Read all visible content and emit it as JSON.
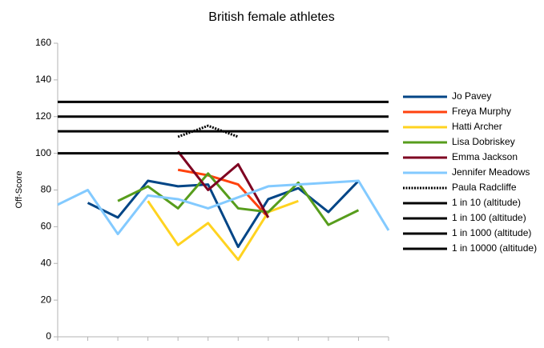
{
  "chart_data": {
    "type": "line",
    "title": "British female athletes",
    "y_label": "Off-Score",
    "categories": [
      null,
      null,
      null,
      null,
      null,
      null,
      null,
      null,
      null,
      null,
      null,
      null
    ],
    "ylim": [
      0,
      160
    ],
    "yticks": [
      0,
      20,
      40,
      60,
      80,
      100,
      120,
      140,
      160
    ],
    "grid": false,
    "legend": "right",
    "series": [
      {
        "name": "Jo Pavey",
        "color": "#004586",
        "values": [
          null,
          73,
          65,
          85,
          82,
          83,
          49,
          75,
          81,
          68,
          85,
          null
        ]
      },
      {
        "name": "Freya Murphy",
        "color": "#ff420e",
        "values": [
          null,
          null,
          null,
          null,
          91,
          88,
          83,
          65,
          null,
          null,
          null,
          null
        ]
      },
      {
        "name": "Hatti Archer",
        "color": "#ffd320",
        "values": [
          null,
          null,
          null,
          74,
          50,
          62,
          42,
          68,
          74,
          null,
          null,
          null
        ]
      },
      {
        "name": "Lisa Dobriskey",
        "color": "#579d1c",
        "values": [
          null,
          null,
          74,
          82,
          70,
          89,
          70,
          68,
          84,
          61,
          69,
          null
        ]
      },
      {
        "name": "Emma Jackson",
        "color": "#7e0021",
        "values": [
          null,
          null,
          null,
          null,
          101,
          80,
          94,
          65,
          null,
          null,
          null,
          null
        ]
      },
      {
        "name": "Jennifer Meadows",
        "color": "#83caff",
        "values": [
          72,
          80,
          56,
          77,
          75,
          70,
          76,
          82,
          83,
          84,
          85,
          58
        ]
      },
      {
        "name": "Paula Radcliffe",
        "color": "#000000",
        "dashed": true,
        "values": [
          null,
          null,
          null,
          null,
          109,
          115,
          109,
          null,
          null,
          null,
          null,
          null
        ]
      },
      {
        "name": "1 in 10 (altitude)",
        "color": "#000000",
        "values": [
          100,
          100,
          100,
          100,
          100,
          100,
          100,
          100,
          100,
          100,
          100,
          100
        ]
      },
      {
        "name": "1 in 100 (altitude)",
        "color": "#000000",
        "values": [
          112,
          112,
          112,
          112,
          112,
          112,
          112,
          112,
          112,
          112,
          112,
          112
        ]
      },
      {
        "name": "1 in 1000 (altitude)",
        "color": "#000000",
        "values": [
          120,
          120,
          120,
          120,
          120,
          120,
          120,
          120,
          120,
          120,
          120,
          120
        ]
      },
      {
        "name": "1 in 10000 (altitude)",
        "color": "#000000",
        "values": [
          128,
          128,
          128,
          128,
          128,
          128,
          128,
          128,
          128,
          128,
          128,
          128
        ]
      }
    ]
  }
}
